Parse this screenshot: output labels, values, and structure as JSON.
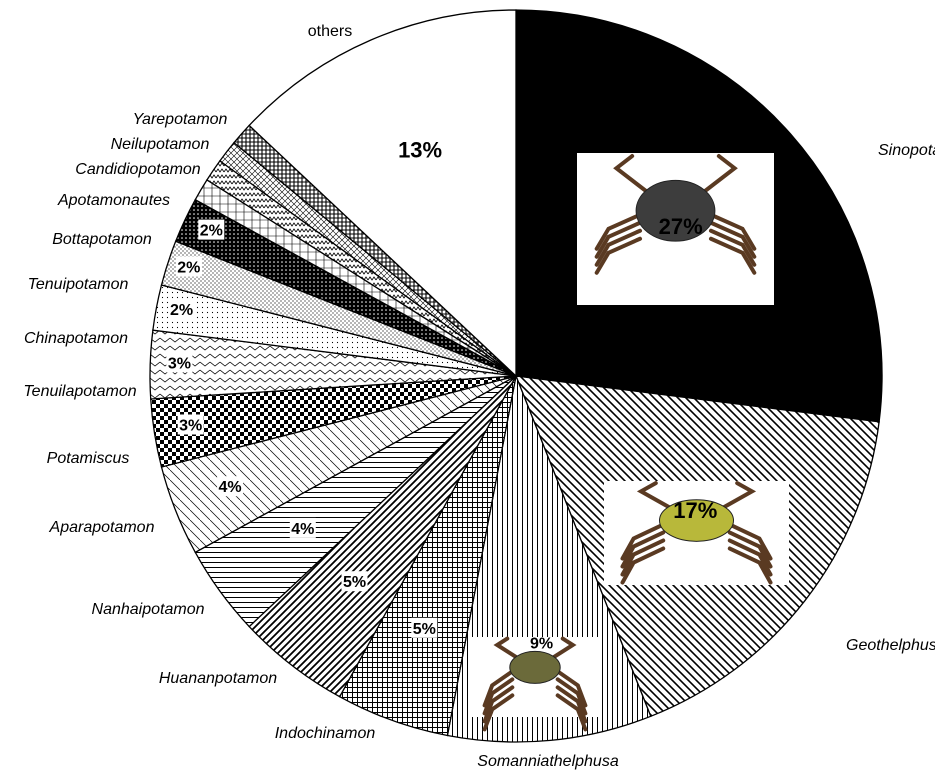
{
  "chart_data": {
    "type": "pie",
    "title": "",
    "start": "12 o'clock",
    "direction": "clockwise",
    "slices": [
      {
        "name": "Sinopotamon",
        "value": 27,
        "label": "27%"
      },
      {
        "name": "Geothelphusa",
        "value": 17,
        "label": "17%"
      },
      {
        "name": "Somanniathelphusa",
        "value": 9,
        "label": "9%"
      },
      {
        "name": "Indochinamon",
        "value": 5,
        "label": "5%"
      },
      {
        "name": "Huananpotamon",
        "value": 5,
        "label": "5%"
      },
      {
        "name": "Nanhaipotamon",
        "value": 4,
        "label": "4%"
      },
      {
        "name": "Aparapotamon",
        "value": 4,
        "label": "4%"
      },
      {
        "name": "Potamiscus",
        "value": 3,
        "label": "3%"
      },
      {
        "name": "Tenuilapotamon",
        "value": 3,
        "label": "3%"
      },
      {
        "name": "Chinapotamon",
        "value": 2,
        "label": "2%"
      },
      {
        "name": "Tenuipotamon",
        "value": 2,
        "label": "2%"
      },
      {
        "name": "Bottapotamon",
        "value": 2,
        "label": "2%"
      },
      {
        "name": "Apotamonautes",
        "value": 1,
        "label": ""
      },
      {
        "name": "Candidiopotamon",
        "value": 1,
        "label": ""
      },
      {
        "name": "Neilupotamon",
        "value": 1,
        "label": ""
      },
      {
        "name": "Yarepotamon",
        "value": 1,
        "label": ""
      },
      {
        "name": "others",
        "value": 13,
        "label": "13%"
      }
    ]
  }
}
